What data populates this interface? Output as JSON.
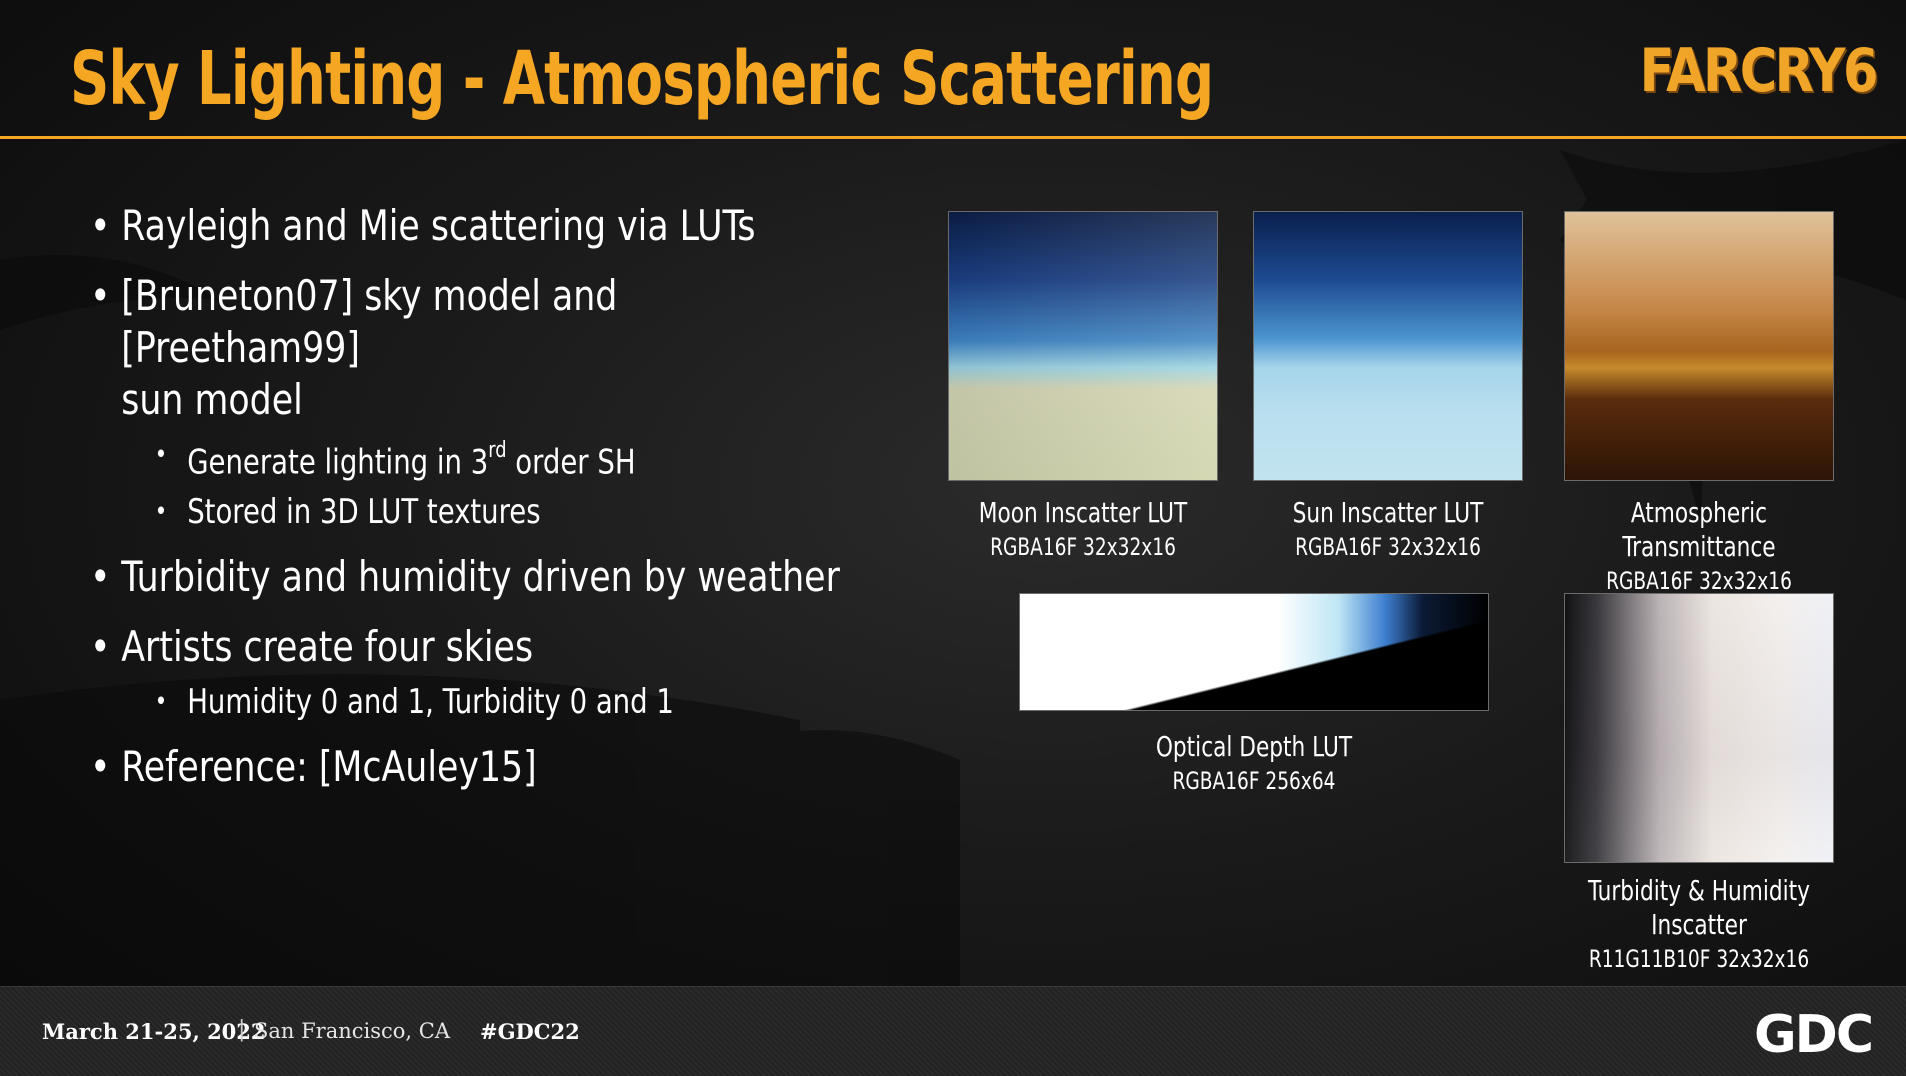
{
  "slide": {
    "title": "Sky Lighting - Atmospheric Scattering",
    "logo": "FARCRY6"
  },
  "bullets": {
    "item1": "Rayleigh and Mie scattering via LUTs",
    "item2_line1": "[Bruneton07] sky model and [Preetham99]",
    "item2_line2": "sun model",
    "sub2a_pre": "Generate lighting in 3",
    "sub2a_sup": "rd",
    "sub2a_post": " order SH",
    "sub2b": "Stored in 3D LUT textures",
    "item3": "Turbidity and humidity driven by weather",
    "item4": "Artists create four skies",
    "sub4a": "Humidity 0 and 1, Turbidity 0 and 1",
    "item5": "Reference: [McAuley15]"
  },
  "luts": {
    "moon": {
      "name": "Moon Inscatter LUT",
      "format": "RGBA16F 32x32x16"
    },
    "sun": {
      "name": "Sun Inscatter LUT",
      "format": "RGBA16F 32x32x16"
    },
    "transmittance": {
      "name": "Atmospheric Transmittance",
      "format": "RGBA16F 32x32x16"
    },
    "optical": {
      "name": "Optical Depth LUT",
      "format": "RGBA16F 256x64"
    },
    "turbidity": {
      "name": "Turbidity & Humidity Inscatter",
      "format": "R11G11B10F 32x32x16"
    }
  },
  "footer": {
    "date": "March 21-25, 2022",
    "separator": "|",
    "city": "San Francisco, CA",
    "hashtag": "#GDC22",
    "logo": "GDC"
  },
  "colors": {
    "accent": "#f5a623",
    "background": "#1a1a1a",
    "text": "#ffffff"
  }
}
